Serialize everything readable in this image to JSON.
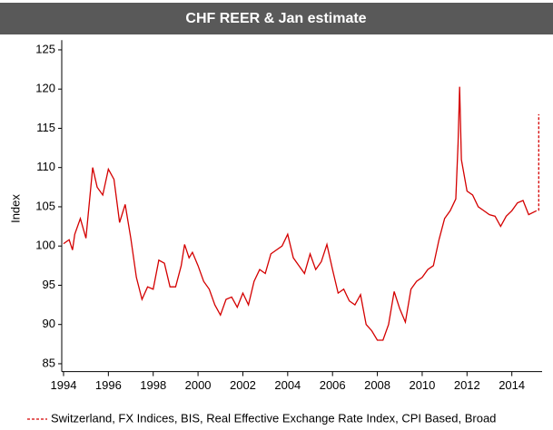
{
  "chart_data": {
    "type": "line",
    "title": "CHF REER & Jan estimate",
    "y_label": "Index",
    "xlim": [
      1993.92,
      2015.35
    ],
    "xticks": [
      1994,
      1996,
      1998,
      2000,
      2002,
      2004,
      2006,
      2008,
      2010,
      2012,
      2014
    ],
    "ylim": [
      84,
      126
    ],
    "yticks": [
      85,
      90,
      95,
      100,
      105,
      110,
      115,
      120,
      125
    ],
    "grid": false,
    "series": [
      {
        "name": "Switzerland, FX Indices, BIS, Real Effective Exchange Rate Index, CPI Based, Broad",
        "color": "#d40000",
        "style": "solid",
        "x": [
          1994.0,
          1994.25,
          1994.4,
          1994.5,
          1994.75,
          1995.0,
          1995.1,
          1995.3,
          1995.5,
          1995.75,
          1996.0,
          1996.25,
          1996.5,
          1996.75,
          1997.0,
          1997.25,
          1997.5,
          1997.75,
          1998.0,
          1998.25,
          1998.5,
          1998.75,
          1999.0,
          1999.25,
          1999.4,
          1999.6,
          1999.75,
          2000.0,
          2000.25,
          2000.5,
          2000.75,
          2001.0,
          2001.25,
          2001.5,
          2001.75,
          2002.0,
          2002.25,
          2002.5,
          2002.75,
          2003.0,
          2003.25,
          2003.5,
          2003.75,
          2004.0,
          2004.25,
          2004.5,
          2004.75,
          2005.0,
          2005.25,
          2005.5,
          2005.75,
          2006.0,
          2006.25,
          2006.5,
          2006.75,
          2007.0,
          2007.25,
          2007.5,
          2007.75,
          2008.0,
          2008.25,
          2008.5,
          2008.75,
          2009.0,
          2009.25,
          2009.5,
          2009.75,
          2010.0,
          2010.25,
          2010.5,
          2010.75,
          2011.0,
          2011.25,
          2011.5,
          2011.6,
          2011.67,
          2011.75,
          2012.0,
          2012.25,
          2012.5,
          2012.75,
          2013.0,
          2013.25,
          2013.5,
          2013.75,
          2014.0,
          2014.25,
          2014.5,
          2014.75,
          2015.1
        ],
        "values": [
          100.3,
          100.8,
          99.5,
          101.5,
          103.5,
          101,
          104,
          110,
          107.5,
          106.5,
          109.8,
          108.5,
          103,
          105.3,
          101,
          96,
          93.2,
          94.8,
          94.5,
          98.2,
          97.8,
          94.8,
          94.8,
          97.5,
          100.2,
          98.5,
          99.2,
          97.5,
          95.5,
          94.5,
          92.5,
          91.2,
          93.2,
          93.5,
          92.2,
          94,
          92.5,
          95.5,
          97,
          96.5,
          99,
          99.5,
          100,
          101.5,
          98.5,
          97.5,
          96.5,
          99,
          97,
          98,
          100.2,
          97,
          94,
          94.5,
          93,
          92.5,
          93.8,
          90,
          89.2,
          88,
          88,
          90,
          94.2,
          92,
          90.3,
          94.5,
          95.5,
          96,
          97,
          97.5,
          100.8,
          103.5,
          104.5,
          106,
          113,
          120.3,
          111,
          107,
          106.5,
          105,
          104.5,
          104,
          103.8,
          102.5,
          103.8,
          104.5,
          105.5,
          105.8,
          104,
          104.5
        ]
      },
      {
        "color": "#d40000",
        "style": "dashed",
        "x": [
          2015.2,
          2015.2
        ],
        "values": [
          104.5,
          116.8
        ]
      }
    ]
  }
}
